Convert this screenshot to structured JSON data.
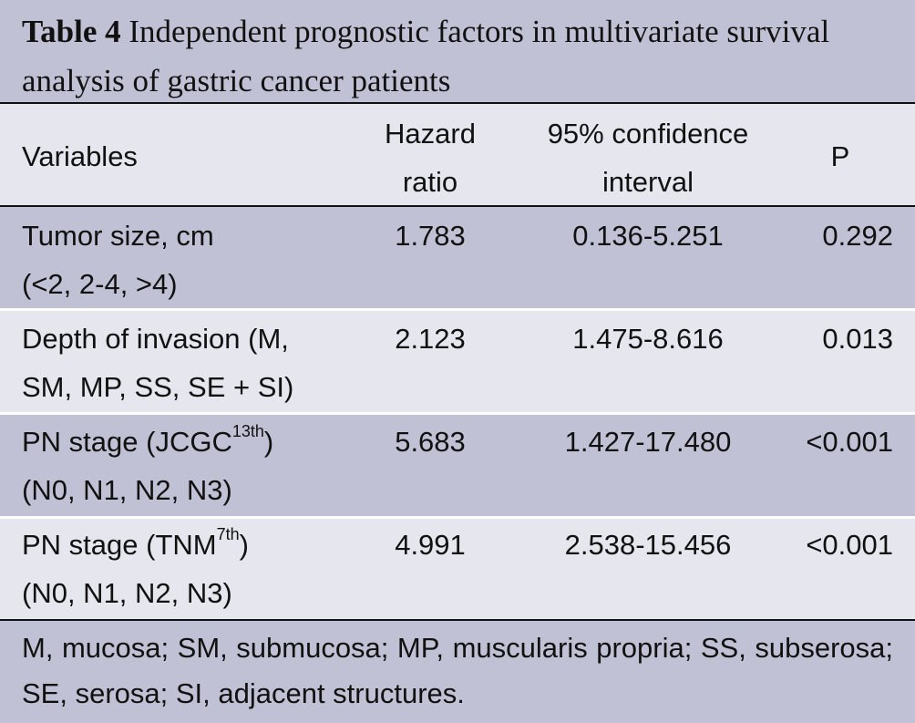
{
  "caption": {
    "label": "Table 4",
    "text": " Independent prognostic factors in multivariate survival analysis of gastric cancer patients"
  },
  "header": {
    "variables": "Variables",
    "hr_line1": "Hazard",
    "hr_line2": "ratio",
    "ci_line1": "95% confidence",
    "ci_line2": "interval",
    "p": "P"
  },
  "rows": [
    {
      "variable_line1": "Tumor size, cm",
      "variable_line1_sup": "",
      "variable_line1_tail": "",
      "variable_line2": "(<2, 2-4, >4)",
      "hazard_ratio": "1.783",
      "ci": "0.136-5.251",
      "p": "0.292"
    },
    {
      "variable_line1": "Depth of invasion (M,",
      "variable_line1_sup": "",
      "variable_line1_tail": "",
      "variable_line2": "SM, MP, SS, SE + SI)",
      "hazard_ratio": "2.123",
      "ci": "1.475-8.616",
      "p": "0.013"
    },
    {
      "variable_line1": "PN stage (JCGC",
      "variable_line1_sup": "13th",
      "variable_line1_tail": ")",
      "variable_line2": "(N0, N1, N2, N3)",
      "hazard_ratio": "5.683",
      "ci": "1.427-17.480",
      "p": "<0.001"
    },
    {
      "variable_line1": "PN stage (TNM",
      "variable_line1_sup": "7th",
      "variable_line1_tail": ")",
      "variable_line2": "(N0, N1, N2, N3)",
      "hazard_ratio": "4.991",
      "ci": "2.538-15.456",
      "p": "<0.001"
    }
  ],
  "footnote": "M, mucosa; SM, submucosa; MP, muscularis propria; SS, subserosa; SE, serosa; SI, adjacent structures.",
  "colors": {
    "band_dark": "#c1c1d5",
    "band_light": "#e6e6ef",
    "text": "#111111",
    "rule": "#111111",
    "separator": "#ffffff"
  }
}
